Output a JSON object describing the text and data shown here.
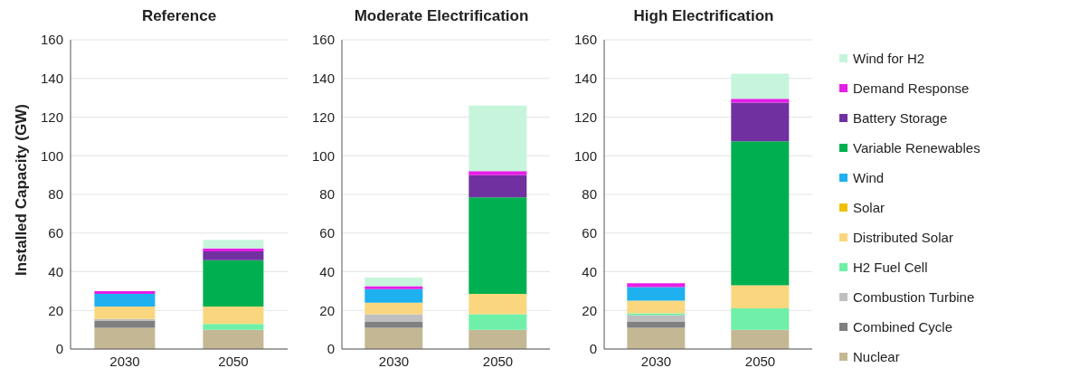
{
  "chart_data": [
    {
      "type": "bar",
      "title": "Reference",
      "ylabel": "Installed Capacity (GW)",
      "categories": [
        "2030",
        "2050"
      ],
      "stacked": true,
      "ylim": [
        0,
        160
      ],
      "yticks": [
        0,
        20,
        40,
        60,
        80,
        100,
        120,
        140,
        160
      ],
      "grid": "y",
      "series": [
        {
          "color": "#c4b894",
          "values": [
            11,
            10
          ]
        },
        {
          "color": "#808080",
          "values": [
            3.5,
            null
          ]
        },
        {
          "color": "#bfbfbf",
          "values": [
            1,
            null
          ]
        },
        {
          "color": "#6ef0a8",
          "values": [
            null,
            3
          ]
        },
        {
          "color": "#fad77e",
          "values": [
            6.5,
            9
          ]
        },
        {
          "color": "#1fb0f0",
          "values": [
            6.5,
            null
          ]
        },
        {
          "color": "#00b050",
          "values": [
            null,
            24
          ]
        },
        {
          "color": "#7030a0",
          "values": [
            null,
            4.5
          ]
        },
        {
          "color": "#e61ee6",
          "values": [
            1.5,
            1.5
          ]
        },
        {
          "color": "#c6f5dc",
          "values": [
            null,
            4.5
          ]
        }
      ]
    },
    {
      "type": "bar",
      "title": "Moderate Electrification",
      "categories": [
        "2030",
        "2050"
      ],
      "stacked": true,
      "ylim": [
        0,
        160
      ],
      "yticks": [
        0,
        20,
        40,
        60,
        80,
        100,
        120,
        140,
        160
      ],
      "grid": "y",
      "series": [
        {
          "color": "#c4b894",
          "values": [
            11,
            10
          ]
        },
        {
          "color": "#808080",
          "values": [
            3,
            null
          ]
        },
        {
          "color": "#bfbfbf",
          "values": [
            4,
            null
          ]
        },
        {
          "color": "#6ef0a8",
          "values": [
            null,
            8
          ]
        },
        {
          "color": "#fad77e",
          "values": [
            6,
            10.5
          ]
        },
        {
          "color": "#1fb0f0",
          "values": [
            7,
            null
          ]
        },
        {
          "color": "#00b050",
          "values": [
            null,
            50
          ]
        },
        {
          "color": "#7030a0",
          "values": [
            null,
            11.5
          ]
        },
        {
          "color": "#e61ee6",
          "values": [
            1.5,
            2
          ]
        },
        {
          "color": "#c6f5dc",
          "values": [
            4.5,
            34
          ]
        }
      ]
    },
    {
      "type": "bar",
      "title": "High Electrification",
      "categories": [
        "2030",
        "2050"
      ],
      "stacked": true,
      "ylim": [
        0,
        160
      ],
      "yticks": [
        0,
        20,
        40,
        60,
        80,
        100,
        120,
        140,
        160
      ],
      "grid": "y",
      "legend": "right",
      "series": [
        {
          "name": "Nuclear",
          "color": "#c4b894",
          "values": [
            11,
            10
          ]
        },
        {
          "name": "Combined Cycle",
          "color": "#808080",
          "values": [
            3,
            null
          ]
        },
        {
          "name": "Combustion Turbine",
          "color": "#bfbfbf",
          "values": [
            3.5,
            null
          ]
        },
        {
          "name": "H2 Fuel Cell",
          "color": "#6ef0a8",
          "values": [
            1,
            11
          ]
        },
        {
          "name": "Distributed Solar",
          "color": "#fad77e",
          "values": [
            6.5,
            12
          ]
        },
        {
          "name": "Solar",
          "color": "#f0c000",
          "values": [
            null,
            null
          ]
        },
        {
          "name": "Wind",
          "color": "#1fb0f0",
          "values": [
            7,
            null
          ]
        },
        {
          "name": "Variable Renewables",
          "color": "#00b050",
          "values": [
            null,
            74.5
          ]
        },
        {
          "name": "Battery Storage",
          "color": "#7030a0",
          "values": [
            null,
            20
          ]
        },
        {
          "name": "Demand Response",
          "color": "#e61ee6",
          "values": [
            2,
            2
          ]
        },
        {
          "name": "Wind for H2",
          "color": "#c6f5dc",
          "values": [
            null,
            13
          ]
        }
      ]
    }
  ]
}
